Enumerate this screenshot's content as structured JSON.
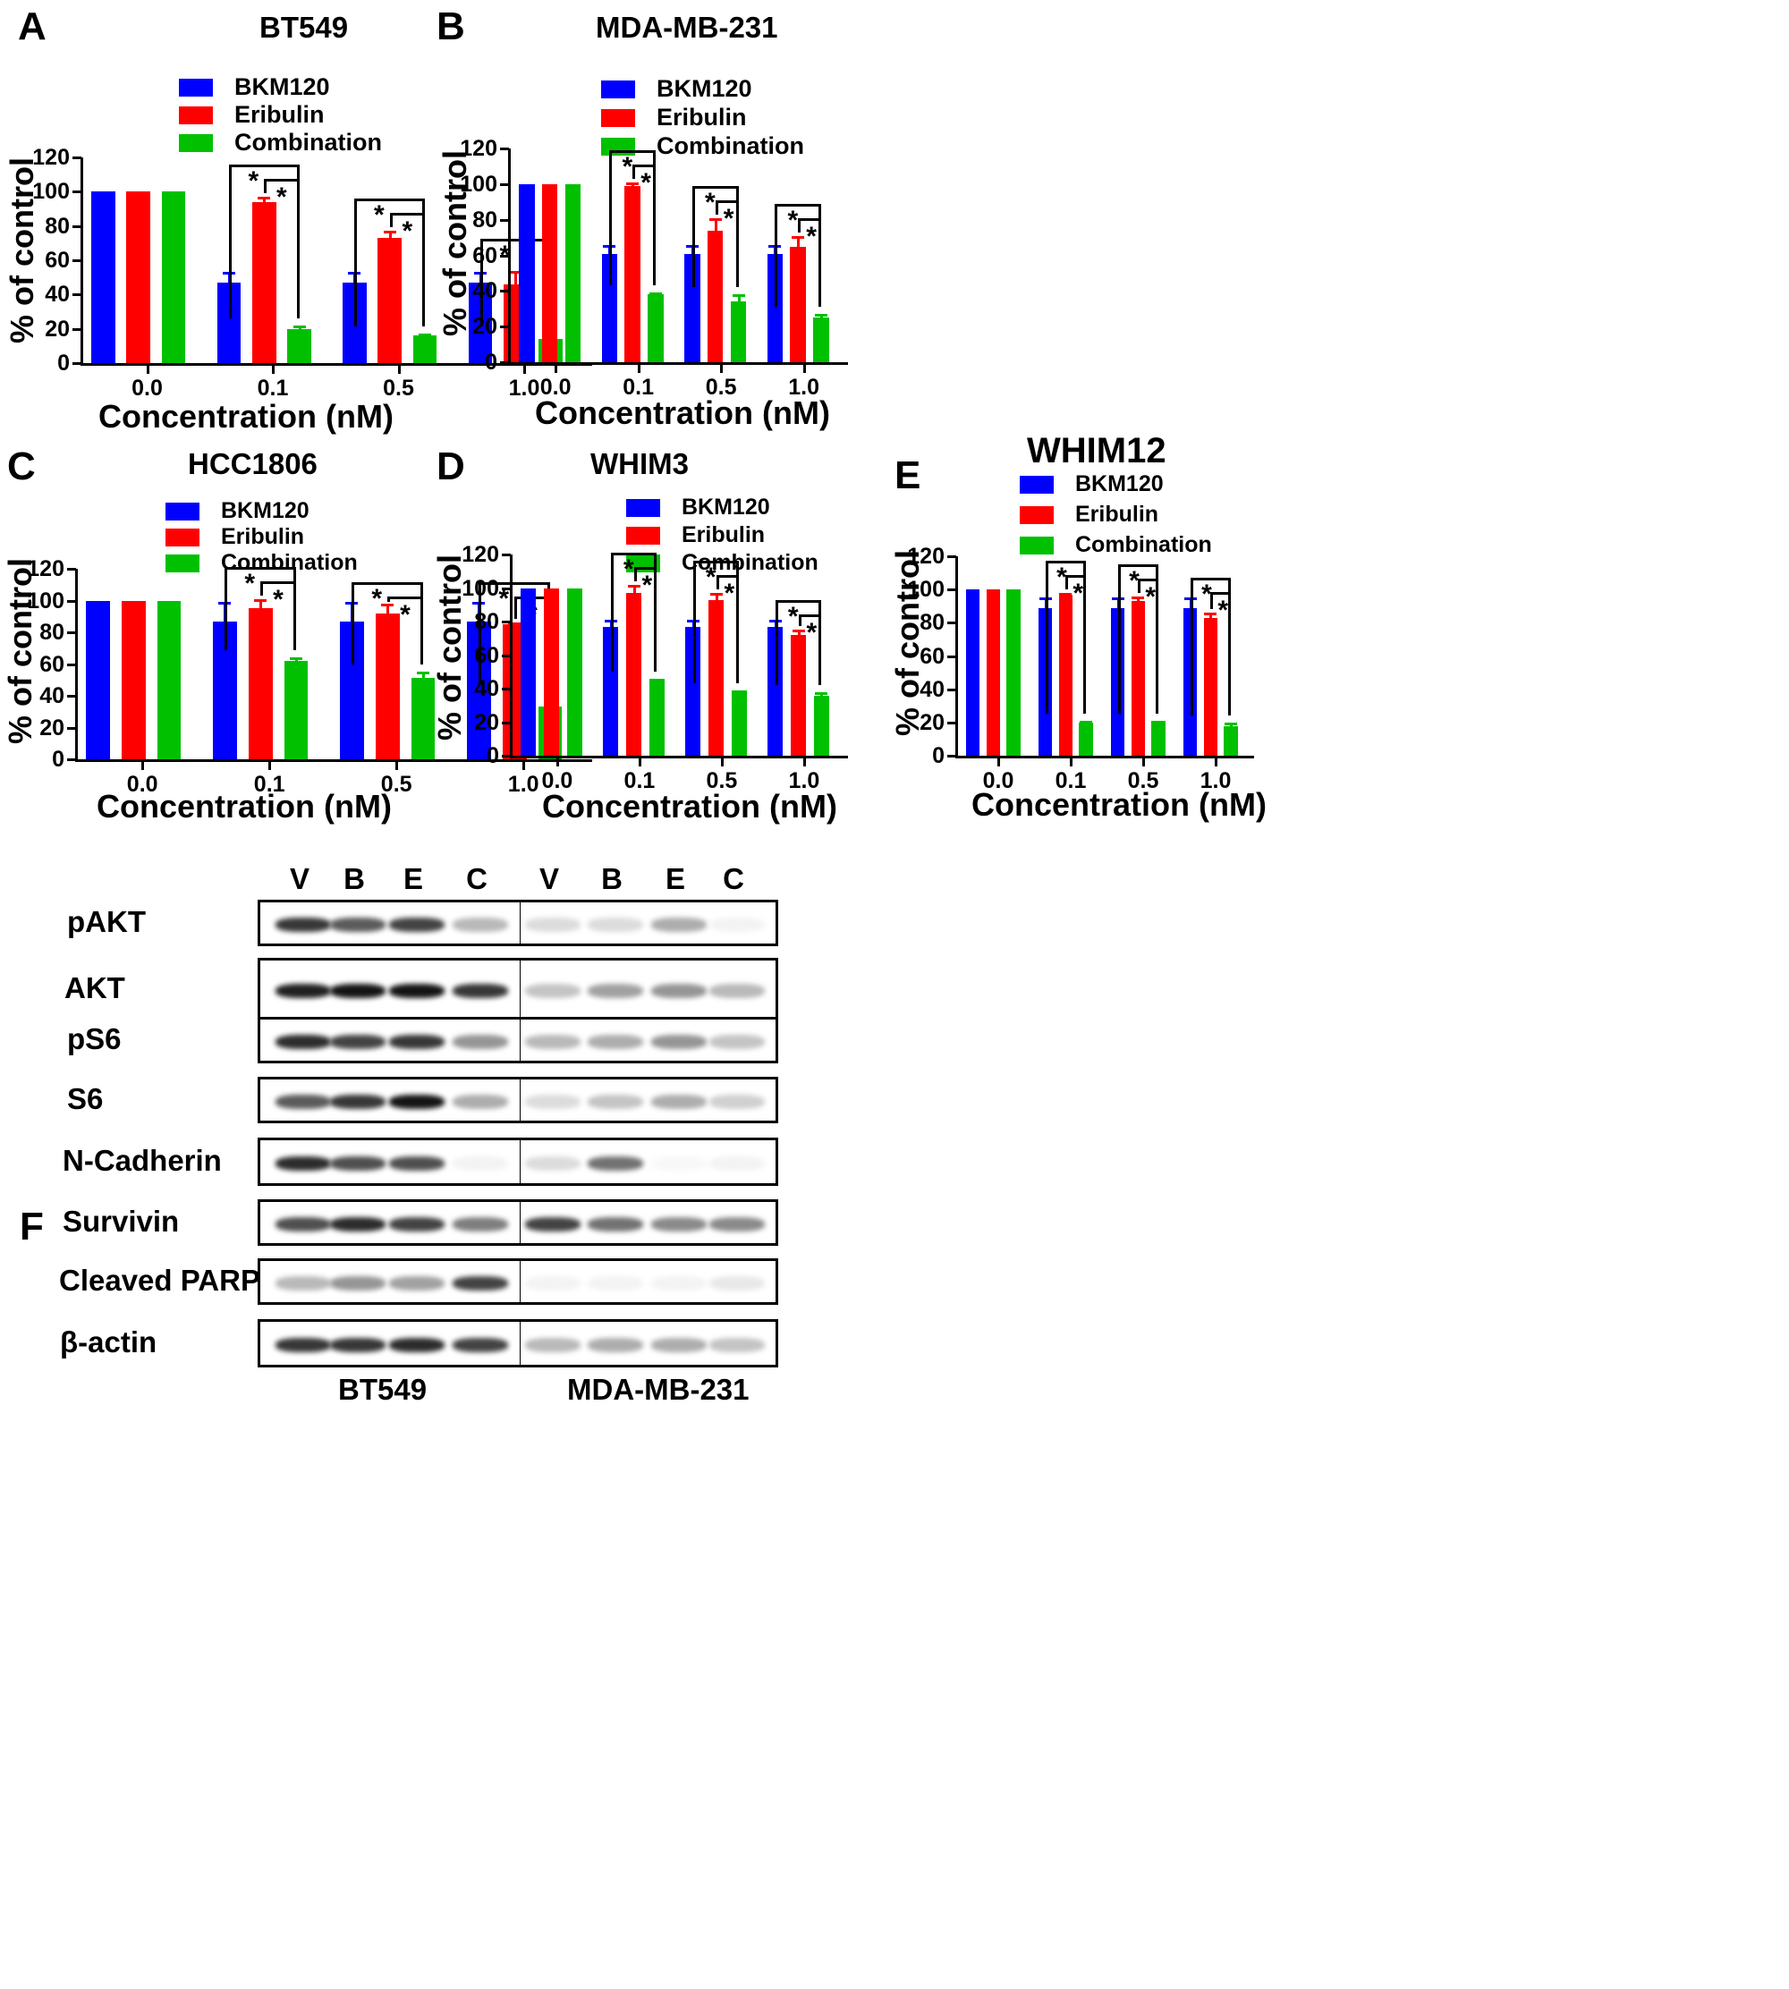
{
  "legend": {
    "items": [
      {
        "label": "BKM120",
        "color": "#0000ff"
      },
      {
        "label": "Eribulin",
        "color": "#ff0000"
      },
      {
        "label": "Combination",
        "color": "#00c000"
      }
    ]
  },
  "panels": {
    "A": {
      "letter": "A",
      "title": "BT549"
    },
    "B": {
      "letter": "B",
      "title": "MDA-MB-231"
    },
    "C": {
      "letter": "C",
      "title": "HCC1806"
    },
    "D": {
      "letter": "D",
      "title": "WHIM3"
    },
    "E": {
      "letter": "E",
      "title": "WHIM12"
    },
    "F": {
      "letter": "F"
    }
  },
  "axis": {
    "ylabel": "% of control",
    "xlabel": "Concentration (nM)",
    "yticks": [
      "0",
      "20",
      "40",
      "60",
      "80",
      "100",
      "120"
    ],
    "xticks": [
      "0.0",
      "0.1",
      "0.5",
      "1.0"
    ],
    "significance_marker": "*"
  },
  "chart_data": [
    {
      "panel": "A",
      "type": "bar",
      "title": "BT549",
      "xlabel": "Concentration (nM)",
      "ylabel": "% of control",
      "ylim": [
        0,
        120
      ],
      "categories": [
        "0.0",
        "0.1",
        "0.5",
        "1.0"
      ],
      "series": [
        {
          "name": "BKM120",
          "color": "#0000ff",
          "values": [
            100,
            47,
            47,
            47
          ],
          "errors": [
            0,
            6,
            6,
            6
          ]
        },
        {
          "name": "Eribulin",
          "color": "#ff0000",
          "values": [
            100,
            94,
            73,
            46
          ],
          "errors": [
            0,
            3,
            4,
            8
          ]
        },
        {
          "name": "Combination",
          "color": "#00c000",
          "values": [
            100,
            20,
            16,
            14
          ],
          "errors": [
            0,
            2,
            1,
            3
          ]
        }
      ],
      "significance": [
        "0.1: BKM120 vs Combination *, Eribulin vs Combination *",
        "0.5: BKM120 vs Combination *, Eribulin vs Combination *",
        "1.0: BKM120 vs Combination *"
      ],
      "legend_position": "top"
    },
    {
      "panel": "B",
      "type": "bar",
      "title": "MDA-MB-231",
      "xlabel": "Concentration (nM)",
      "ylabel": "% of control",
      "ylim": [
        0,
        120
      ],
      "categories": [
        "0.0",
        "0.1",
        "0.5",
        "1.0"
      ],
      "series": [
        {
          "name": "BKM120",
          "color": "#0000ff",
          "values": [
            100,
            61,
            61,
            61
          ],
          "errors": [
            0,
            5,
            5,
            5
          ]
        },
        {
          "name": "Eribulin",
          "color": "#ff0000",
          "values": [
            100,
            99,
            74,
            65
          ],
          "errors": [
            0,
            2,
            7,
            6
          ]
        },
        {
          "name": "Combination",
          "color": "#00c000",
          "values": [
            100,
            38,
            34,
            25
          ],
          "errors": [
            0,
            1,
            4,
            2
          ]
        }
      ],
      "significance": [
        "0.1: BKM120 vs Combination *, Eribulin vs Combination **",
        "0.5: BKM120 vs Combination *, Eribulin vs Combination *",
        "1.0: BKM120 vs Combination *, Eribulin vs Combination *"
      ],
      "legend_position": "top"
    },
    {
      "panel": "C",
      "type": "bar",
      "title": "HCC1806",
      "xlabel": "Concentration (nM)",
      "ylabel": "% of control",
      "ylim": [
        0,
        120
      ],
      "categories": [
        "0.0",
        "0.1",
        "0.5",
        "1.0"
      ],
      "series": [
        {
          "name": "BKM120",
          "color": "#0000ff",
          "values": [
            100,
            87,
            87,
            87
          ],
          "errors": [
            0,
            12,
            12,
            12
          ]
        },
        {
          "name": "Eribulin",
          "color": "#ff0000",
          "values": [
            100,
            95,
            92,
            85
          ],
          "errors": [
            0,
            6,
            6,
            1
          ]
        },
        {
          "name": "Combination",
          "color": "#00c000",
          "values": [
            100,
            62,
            51,
            33
          ],
          "errors": [
            0,
            2,
            4,
            9
          ]
        }
      ],
      "significance": [
        "0.1: BKM120 vs Combination *, Eribulin vs Combination *",
        "0.5: BKM120 vs Combination *, Eribulin vs Combination *",
        "1.0: BKM120 vs Combination *, Eribulin vs Combination *"
      ],
      "legend_position": "top"
    },
    {
      "panel": "D",
      "type": "bar",
      "title": "WHIM3",
      "xlabel": "Concentration (nM)",
      "ylabel": "% of control",
      "ylim": [
        0,
        120
      ],
      "categories": [
        "0.0",
        "0.1",
        "0.5",
        "1.0"
      ],
      "series": [
        {
          "name": "BKM120",
          "color": "#0000ff",
          "values": [
            100,
            77,
            77,
            77
          ],
          "errors": [
            0,
            4,
            4,
            4
          ]
        },
        {
          "name": "Eribulin",
          "color": "#ff0000",
          "values": [
            100,
            97,
            93,
            72
          ],
          "errors": [
            0,
            5,
            4,
            3
          ]
        },
        {
          "name": "Combination",
          "color": "#00c000",
          "values": [
            100,
            46,
            39,
            36
          ],
          "errors": [
            0,
            0,
            0,
            2
          ]
        }
      ],
      "significance": [
        "0.1: BKM120 vs Combination *, Eribulin vs Combination **",
        "0.5: BKM120 vs Combination *, Eribulin vs Combination **",
        "1.0: BKM120 vs Combination *, Eribulin vs Combination *"
      ],
      "legend_position": "top"
    },
    {
      "panel": "E",
      "type": "bar",
      "title": "WHIM12",
      "xlabel": "Concentration (nM)",
      "ylabel": "% of control",
      "ylim": [
        0,
        120
      ],
      "categories": [
        "0.0",
        "0.1",
        "0.5",
        "1.0"
      ],
      "series": [
        {
          "name": "BKM120",
          "color": "#0000ff",
          "values": [
            100,
            89,
            89,
            89
          ],
          "errors": [
            0,
            6,
            6,
            6
          ]
        },
        {
          "name": "Eribulin",
          "color": "#ff0000",
          "values": [
            100,
            97,
            93,
            83
          ],
          "errors": [
            0,
            1,
            3,
            3
          ]
        },
        {
          "name": "Combination",
          "color": "#00c000",
          "values": [
            100,
            20,
            21,
            18
          ],
          "errors": [
            0,
            1,
            0,
            2
          ]
        }
      ],
      "significance": [
        "0.1: BKM120 vs Combination *, Eribulin vs Combination **",
        "0.5: BKM120 vs Combination *, Eribulin vs Combination *",
        "1.0: BKM120 vs Combination *, Eribulin vs Combination **"
      ],
      "legend_position": "top"
    }
  ],
  "western_blot": {
    "lanes": [
      "V",
      "B",
      "E",
      "C",
      "V",
      "B",
      "E",
      "C"
    ],
    "cell_lines": [
      "BT549",
      "MDA-MB-231"
    ],
    "proteins": [
      "pAKT",
      "AKT",
      "pS6",
      "S6",
      "N-Cadherin",
      "Survivin",
      "Cleaved PARP",
      "β-actin"
    ],
    "band_intensity": [
      [
        0.85,
        0.7,
        0.8,
        0.3,
        0.15,
        0.15,
        0.35,
        0.05
      ],
      [
        0.95,
        1.0,
        1.0,
        0.85,
        0.25,
        0.4,
        0.45,
        0.3
      ],
      [
        0.9,
        0.8,
        0.85,
        0.45,
        0.3,
        0.35,
        0.45,
        0.25
      ],
      [
        0.7,
        0.85,
        1.0,
        0.35,
        0.15,
        0.25,
        0.35,
        0.2
      ],
      [
        0.9,
        0.75,
        0.75,
        0.05,
        0.15,
        0.6,
        0.03,
        0.05
      ],
      [
        0.75,
        0.9,
        0.8,
        0.55,
        0.8,
        0.6,
        0.5,
        0.5
      ],
      [
        0.3,
        0.45,
        0.4,
        0.8,
        0.05,
        0.05,
        0.05,
        0.1
      ],
      [
        0.85,
        0.85,
        0.9,
        0.8,
        0.3,
        0.35,
        0.35,
        0.25
      ]
    ]
  }
}
